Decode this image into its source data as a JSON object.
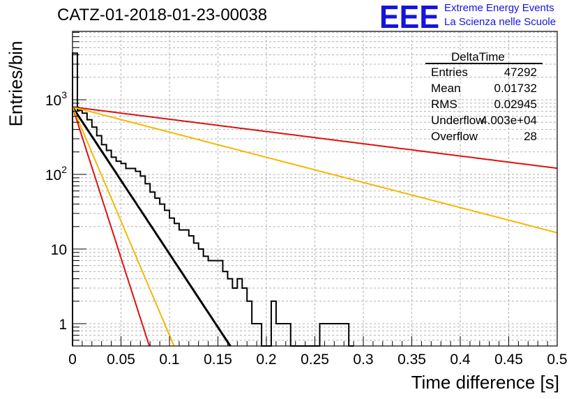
{
  "header": {
    "title": "CATZ-01-2018-01-23-00038",
    "logo_text": "EEE",
    "logo_line_1": "Extreme Energy Events",
    "logo_line_2": "La Scienza nelle Scuole",
    "logo_color": "#1414e0"
  },
  "stats_box": {
    "title": "DeltaTime",
    "rows": [
      {
        "label": "Entries",
        "value": "47292"
      },
      {
        "label": "Mean",
        "value": "0.01732"
      },
      {
        "label": "RMS",
        "value": "0.02945"
      },
      {
        "label": "Underflow",
        "value": "4.003e+04"
      },
      {
        "label": "Overflow",
        "value": "28"
      }
    ]
  },
  "chart_data": {
    "type": "line",
    "title": "CATZ-01-2018-01-23-00038",
    "xlabel": "Time difference [s]",
    "ylabel": "Entries/bin",
    "xlim": [
      0,
      0.5
    ],
    "ylim": [
      0.5,
      8000
    ],
    "y_scale": "log",
    "grid": true,
    "x_ticks": [
      "0",
      "0.05",
      "0.1",
      "0.15",
      "0.2",
      "0.25",
      "0.3",
      "0.35",
      "0.4",
      "0.45",
      "0.5"
    ],
    "x_tick_values": [
      0,
      0.05,
      0.1,
      0.15,
      0.2,
      0.25,
      0.3,
      0.35,
      0.4,
      0.45,
      0.5
    ],
    "y_tick_labels": [
      {
        "value": 1000,
        "base": "10",
        "exp": "3"
      },
      {
        "value": 100,
        "base": "10",
        "exp": "2"
      },
      {
        "value": 10,
        "base": "10",
        "exp": ""
      },
      {
        "value": 1,
        "base": "1",
        "exp": ""
      }
    ],
    "histogram": {
      "bin_width": 0.005,
      "color": "#000000",
      "counts": [
        4200,
        720,
        660,
        540,
        430,
        330,
        250,
        210,
        170,
        150,
        140,
        120,
        120,
        110,
        95,
        75,
        58,
        48,
        40,
        33,
        26,
        22,
        18,
        18,
        15,
        12,
        10,
        8,
        7,
        7,
        7,
        5,
        4,
        3,
        4,
        3,
        2,
        1,
        1,
        0,
        0,
        2,
        1,
        1,
        1,
        0,
        0,
        0,
        0,
        0,
        0,
        1,
        1,
        1,
        1,
        1,
        1,
        0
      ]
    },
    "lines": [
      {
        "color": "#000000",
        "y0": 800,
        "slope": -45.3
      },
      {
        "color": "#dd1111",
        "y0": 800,
        "slope": -93.1
      },
      {
        "color": "#f5b800",
        "y0": 800,
        "slope": -70.4
      },
      {
        "color": "#dd1111",
        "y0": 800,
        "slope": -3.78
      },
      {
        "color": "#f5b800",
        "y0": 800,
        "slope": -7.76
      }
    ]
  }
}
